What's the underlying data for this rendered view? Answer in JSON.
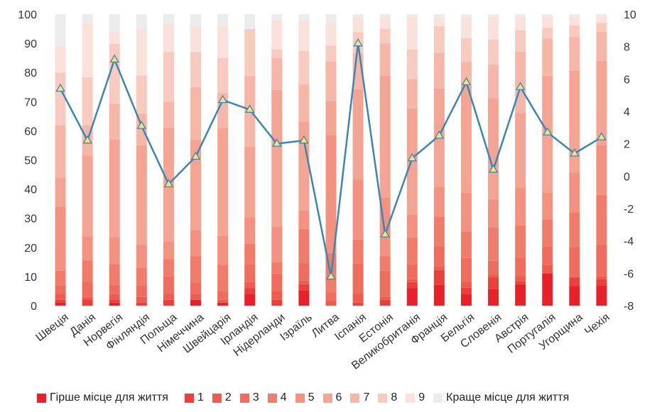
{
  "chart_data": {
    "type": "bar",
    "stacked": true,
    "categories": [
      "Швеція",
      "Данія",
      "Норвегія",
      "Фінляндія",
      "Польща",
      "Німеччина",
      "Швейцарія",
      "Ірландія",
      "Нідерланди",
      "Ізраїль",
      "Литва",
      "Іспанія",
      "Естонія",
      "Великобританія",
      "Франція",
      "Бельгія",
      "Словенія",
      "Австрія",
      "Португалія",
      "Угорщина",
      "Чехія"
    ],
    "series": [
      {
        "name": "Гірше місце для життя",
        "color": "#e8202a",
        "values": [
          1,
          0,
          1,
          0,
          0,
          2,
          1,
          4,
          0,
          5,
          0,
          0,
          0,
          6,
          7,
          4,
          6,
          8,
          12,
          7,
          7
        ]
      },
      {
        "name": "1",
        "color": "#eb3f3b",
        "values": [
          1,
          2,
          1,
          1,
          2,
          0,
          0,
          2,
          2,
          2,
          0,
          1,
          2,
          2,
          5,
          2,
          4,
          1,
          0,
          3,
          2
        ]
      },
      {
        "name": "2",
        "color": "#ee5c4f",
        "values": [
          2,
          1,
          2,
          2,
          2,
          2,
          1,
          2,
          3,
          1,
          2,
          3,
          1,
          1,
          1,
          2,
          1,
          2,
          3,
          0,
          1
        ]
      },
      {
        "name": "3",
        "color": "#ef6d5e",
        "values": [
          3,
          5,
          3,
          4,
          6,
          4,
          3,
          6,
          6,
          6,
          3,
          10,
          9,
          5,
          7,
          8,
          5,
          7,
          7,
          11,
          11
        ]
      },
      {
        "name": "4",
        "color": "#f07d6c",
        "values": [
          5,
          7,
          7,
          6,
          6,
          9,
          9,
          7,
          4,
          11,
          15,
          8,
          5,
          9,
          10,
          9,
          12,
          12,
          10,
          12,
          17
        ]
      },
      {
        "name": "5",
        "color": "#f39280",
        "values": [
          22,
          8,
          9,
          8,
          6,
          9,
          10,
          9,
          12,
          6,
          45,
          20,
          20,
          8,
          10,
          13,
          10,
          14,
          10,
          14,
          17
        ]
      },
      {
        "name": "6",
        "color": "#f4a493",
        "values": [
          10,
          27,
          33,
          34,
          39,
          31,
          37,
          24,
          47,
          29,
          13,
          30,
          42,
          36,
          33,
          36,
          36,
          28,
          43,
          36,
          29
        ]
      },
      {
        "name": "7",
        "color": "#f6b7a9",
        "values": [
          18,
          10,
          12,
          11,
          9,
          18,
          12,
          24,
          11,
          12,
          15,
          12,
          11,
          10,
          12,
          8,
          12,
          23,
          14,
          12,
          10
        ]
      },
      {
        "name": "8",
        "color": "#f8cbc1",
        "values": [
          18,
          16,
          20,
          13,
          17,
          12,
          12,
          16,
          3,
          11,
          6,
          7,
          5,
          10,
          9,
          8,
          9,
          8,
          4,
          4,
          3
        ]
      },
      {
        "name": "9",
        "color": "#fbe1db",
        "values": [
          9,
          18,
          4,
          16,
          10,
          9,
          11,
          0,
          10,
          10,
          9,
          5,
          4,
          11,
          3,
          7,
          8,
          5,
          4,
          3,
          2
        ]
      },
      {
        "name": "Краще місце для життя",
        "color": "#ececec",
        "values": [
          11,
          3,
          6,
          5,
          3,
          4,
          4,
          5,
          2,
          2,
          3,
          1,
          1,
          1,
          1,
          1,
          1,
          1,
          1,
          1,
          1
        ]
      }
    ],
    "line_series": {
      "axis": "right",
      "values": [
        5.4,
        2.2,
        7.2,
        3.1,
        -0.5,
        1.2,
        4.7,
        4.1,
        2.0,
        2.2,
        -6.2,
        8.2,
        -3.6,
        1.1,
        2.5,
        5.8,
        0.4,
        5.5,
        2.7,
        1.4,
        2.4
      ]
    },
    "y_left": {
      "min": 0,
      "max": 100,
      "ticks": [
        0,
        10,
        20,
        30,
        40,
        50,
        60,
        70,
        80,
        90,
        100
      ]
    },
    "y_right": {
      "min": -8,
      "max": 10,
      "ticks": [
        -8,
        -6,
        -4,
        -2,
        0,
        2,
        4,
        6,
        8,
        10
      ]
    },
    "grid": false,
    "legend_position": "bottom",
    "line_color": "#3d86b0",
    "marker_fill": "#f1e28a",
    "marker_stroke": "#3d86b0"
  }
}
